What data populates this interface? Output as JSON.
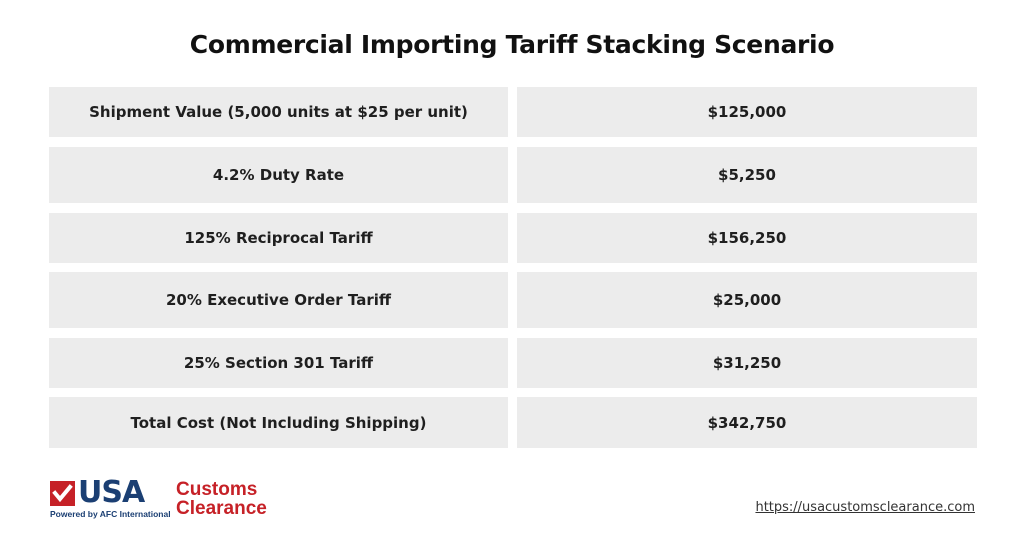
{
  "title": "Commercial Importing Tariff Stacking Scenario",
  "rows": [
    {
      "label": "Shipment Value (5,000 units at $25 per unit)",
      "value": "$125,000"
    },
    {
      "label": "4.2% Duty Rate",
      "value": "$5,250"
    },
    {
      "label": "125% Reciprocal Tariff",
      "value": "$156,250"
    },
    {
      "label": "20% Executive Order Tariff",
      "value": "$25,000"
    },
    {
      "label": "25% Section 301 Tariff",
      "value": "$31,250"
    },
    {
      "label": "Total Cost (Not Including Shipping)",
      "value": "$342,750"
    }
  ],
  "logo": {
    "usa": "USA",
    "powered": "Powered by AFC International",
    "customs": "Customs",
    "clearance": "Clearance",
    "icon": "checkmark-icon"
  },
  "footer": {
    "url": "https://usacustomsclearance.com"
  },
  "colors": {
    "cell_bg": "#ececec",
    "logo_red": "#c62127",
    "logo_blue": "#1b3f73"
  }
}
